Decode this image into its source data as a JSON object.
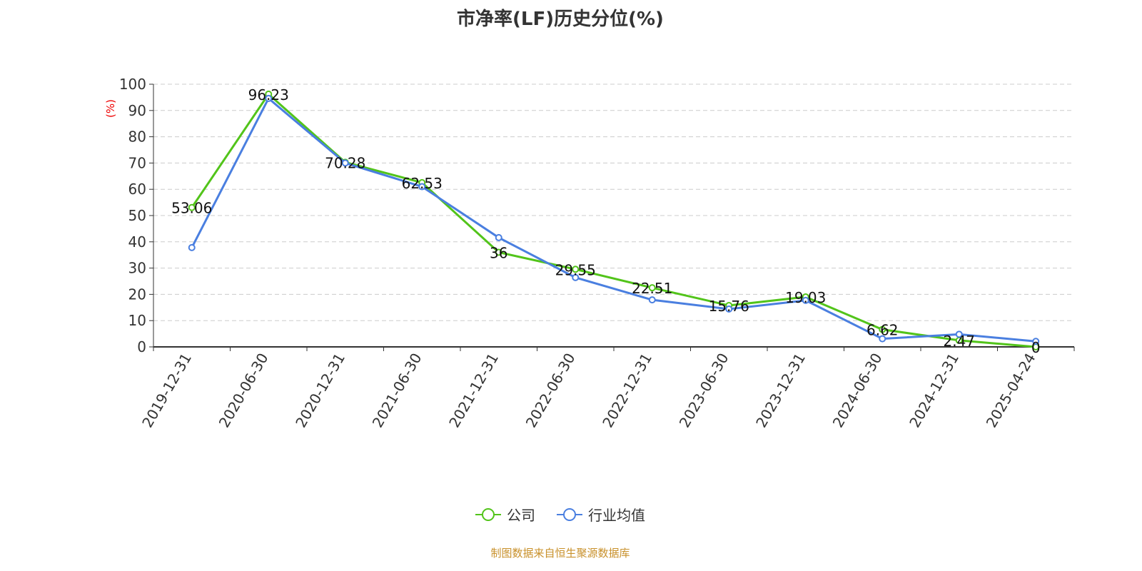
{
  "chart_data": {
    "type": "line",
    "title": "市净率(LF)历史分位(%)",
    "ylabel": "(%)",
    "xlabel": "",
    "ylim": [
      0,
      100
    ],
    "yticks": [
      0,
      10,
      20,
      30,
      40,
      50,
      60,
      70,
      80,
      90,
      100
    ],
    "grid": true,
    "legend_position": "bottom",
    "categories": [
      "2019-12-31",
      "2020-06-30",
      "2020-12-31",
      "2021-06-30",
      "2021-12-31",
      "2022-06-30",
      "2022-12-31",
      "2023-06-30",
      "2023-12-31",
      "2024-06-30",
      "2024-12-31",
      "2025-04-24"
    ],
    "series": [
      {
        "name": "公司",
        "color": "#52c41a",
        "values": [
          53.06,
          96.23,
          70.28,
          62.53,
          36,
          29.55,
          22.51,
          15.76,
          19.03,
          6.62,
          2.47,
          0
        ],
        "labels": [
          "53.06",
          "96.23",
          "70.28",
          "62.53",
          "36",
          "29.55",
          "22.51",
          "15.76",
          "19.03",
          "6.62",
          "2.47",
          "0"
        ]
      },
      {
        "name": "行业均值",
        "color": "#4a7fe0",
        "values": [
          37.8,
          94.6,
          70,
          61,
          41.6,
          26.4,
          17.9,
          14.4,
          17.7,
          3.1,
          4.8,
          2.1
        ]
      }
    ]
  },
  "source": "制图数据来自恒生聚源数据库"
}
